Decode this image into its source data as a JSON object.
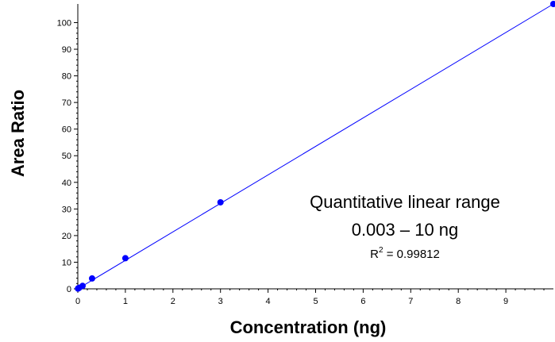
{
  "chart_data": {
    "type": "scatter",
    "title": "",
    "xlabel": "Concentration (ng)",
    "ylabel": "Area Ratio",
    "xlim": [
      0,
      10
    ],
    "ylim": [
      0,
      107
    ],
    "x_ticks": [
      "0",
      "1",
      "2",
      "3",
      "4",
      "5",
      "6",
      "7",
      "8",
      "9"
    ],
    "x_tick_values": [
      0,
      1,
      2,
      3,
      4,
      5,
      6,
      7,
      8,
      9
    ],
    "y_ticks": [
      "0",
      "10",
      "20",
      "30",
      "40",
      "50",
      "60",
      "70",
      "80",
      "90",
      "100"
    ],
    "y_tick_values": [
      0,
      10,
      20,
      30,
      40,
      50,
      60,
      70,
      80,
      90,
      100
    ],
    "grid": false,
    "point_color": "#0000ff",
    "line_color": "#0000ff",
    "points": [
      {
        "x": 0.003,
        "y": 0.1
      },
      {
        "x": 0.01,
        "y": 0.2
      },
      {
        "x": 0.03,
        "y": 0.4
      },
      {
        "x": 0.1,
        "y": 1.1
      },
      {
        "x": 0.3,
        "y": 3.9
      },
      {
        "x": 1,
        "y": 11.5
      },
      {
        "x": 3,
        "y": 32.5
      },
      {
        "x": 10,
        "y": 107
      }
    ],
    "fit_line": {
      "x0": 0,
      "y0": 0,
      "x1": 10,
      "y1": 107
    },
    "annotations": {
      "line1": "Quantitative linear range",
      "line2": "0.003 – 10 ng",
      "r2_prefix": "R",
      "r2_sup": "2",
      "r2_value": " = 0.99812"
    }
  }
}
